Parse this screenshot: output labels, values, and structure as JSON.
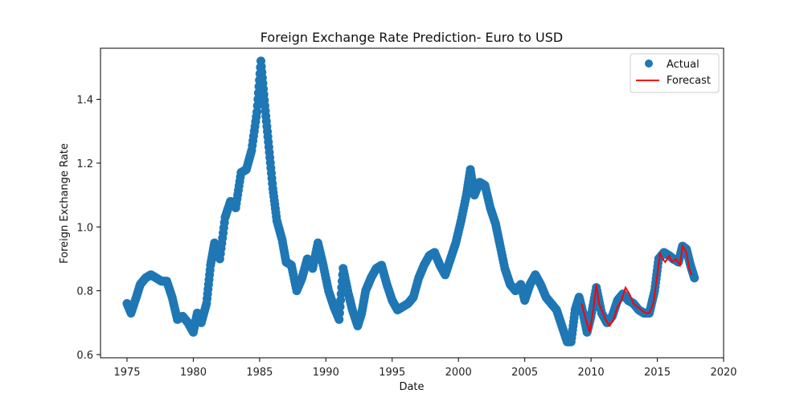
{
  "chart_data": {
    "type": "scatter",
    "title": "Foreign Exchange Rate Prediction- Euro to USD",
    "xlabel": "Date",
    "ylabel": "Foreign Exchange Rate",
    "xlim": [
      1973.0,
      2020.0
    ],
    "ylim": [
      0.59,
      1.56
    ],
    "x_ticks": [
      1975,
      1980,
      1985,
      1990,
      1995,
      2000,
      2005,
      2010,
      2015,
      2020
    ],
    "y_ticks": [
      0.6,
      0.8,
      1.0,
      1.2,
      1.4
    ],
    "x_tick_labels": [
      "1975",
      "1980",
      "1985",
      "1990",
      "1995",
      "2000",
      "2005",
      "2010",
      "2015",
      "2020"
    ],
    "y_tick_labels": [
      "0.6",
      "0.8",
      "1.0",
      "1.2",
      "1.4"
    ],
    "grid": false,
    "legend": {
      "position": "top-right",
      "entries": [
        "Actual",
        "Forecast"
      ]
    },
    "colors": {
      "actual": "#1f77b4",
      "forecast": "#ff0000"
    },
    "series": [
      {
        "name": "Actual",
        "kind": "scatter",
        "points": [
          [
            1975.0,
            0.76
          ],
          [
            1975.3,
            0.73
          ],
          [
            1975.7,
            0.78
          ],
          [
            1976.0,
            0.82
          ],
          [
            1976.4,
            0.84
          ],
          [
            1976.8,
            0.85
          ],
          [
            1977.2,
            0.84
          ],
          [
            1977.6,
            0.83
          ],
          [
            1978.0,
            0.83
          ],
          [
            1978.4,
            0.78
          ],
          [
            1978.8,
            0.71
          ],
          [
            1979.2,
            0.72
          ],
          [
            1979.6,
            0.7
          ],
          [
            1980.0,
            0.67
          ],
          [
            1980.3,
            0.73
          ],
          [
            1980.6,
            0.7
          ],
          [
            1981.0,
            0.76
          ],
          [
            1981.3,
            0.88
          ],
          [
            1981.6,
            0.95
          ],
          [
            1982.0,
            0.9
          ],
          [
            1982.4,
            1.03
          ],
          [
            1982.8,
            1.08
          ],
          [
            1983.2,
            1.06
          ],
          [
            1983.6,
            1.17
          ],
          [
            1984.0,
            1.18
          ],
          [
            1984.4,
            1.24
          ],
          [
            1984.8,
            1.36
          ],
          [
            1985.1,
            1.52
          ],
          [
            1985.4,
            1.38
          ],
          [
            1985.7,
            1.25
          ],
          [
            1986.0,
            1.12
          ],
          [
            1986.3,
            1.02
          ],
          [
            1986.7,
            0.96
          ],
          [
            1987.0,
            0.89
          ],
          [
            1987.4,
            0.88
          ],
          [
            1987.8,
            0.8
          ],
          [
            1988.2,
            0.84
          ],
          [
            1988.6,
            0.9
          ],
          [
            1989.0,
            0.87
          ],
          [
            1989.4,
            0.95
          ],
          [
            1989.8,
            0.88
          ],
          [
            1990.2,
            0.8
          ],
          [
            1990.6,
            0.75
          ],
          [
            1991.0,
            0.71
          ],
          [
            1991.3,
            0.87
          ],
          [
            1991.7,
            0.79
          ],
          [
            1992.0,
            0.74
          ],
          [
            1992.4,
            0.69
          ],
          [
            1992.7,
            0.73
          ],
          [
            1993.0,
            0.8
          ],
          [
            1993.4,
            0.84
          ],
          [
            1993.8,
            0.87
          ],
          [
            1994.2,
            0.88
          ],
          [
            1994.6,
            0.82
          ],
          [
            1995.0,
            0.77
          ],
          [
            1995.4,
            0.74
          ],
          [
            1995.8,
            0.75
          ],
          [
            1996.2,
            0.76
          ],
          [
            1996.6,
            0.78
          ],
          [
            1997.0,
            0.84
          ],
          [
            1997.4,
            0.88
          ],
          [
            1997.8,
            0.91
          ],
          [
            1998.2,
            0.92
          ],
          [
            1998.6,
            0.88
          ],
          [
            1999.0,
            0.85
          ],
          [
            1999.4,
            0.9
          ],
          [
            1999.8,
            0.95
          ],
          [
            2000.2,
            1.02
          ],
          [
            2000.6,
            1.1
          ],
          [
            2000.9,
            1.18
          ],
          [
            2001.2,
            1.1
          ],
          [
            2001.6,
            1.14
          ],
          [
            2002.0,
            1.13
          ],
          [
            2002.4,
            1.06
          ],
          [
            2002.8,
            1.01
          ],
          [
            2003.1,
            0.95
          ],
          [
            2003.5,
            0.87
          ],
          [
            2003.9,
            0.82
          ],
          [
            2004.3,
            0.8
          ],
          [
            2004.7,
            0.82
          ],
          [
            2005.0,
            0.77
          ],
          [
            2005.4,
            0.82
          ],
          [
            2005.8,
            0.85
          ],
          [
            2006.2,
            0.82
          ],
          [
            2006.6,
            0.78
          ],
          [
            2007.0,
            0.76
          ],
          [
            2007.4,
            0.74
          ],
          [
            2007.8,
            0.69
          ],
          [
            2008.2,
            0.64
          ],
          [
            2008.5,
            0.64
          ],
          [
            2008.8,
            0.74
          ],
          [
            2009.1,
            0.78
          ],
          [
            2009.4,
            0.73
          ],
          [
            2009.7,
            0.67
          ],
          [
            2010.0,
            0.72
          ],
          [
            2010.4,
            0.81
          ],
          [
            2010.8,
            0.73
          ],
          [
            2011.2,
            0.7
          ],
          [
            2011.6,
            0.72
          ],
          [
            2012.0,
            0.77
          ],
          [
            2012.4,
            0.79
          ],
          [
            2012.8,
            0.77
          ],
          [
            2013.2,
            0.76
          ],
          [
            2013.6,
            0.74
          ],
          [
            2014.0,
            0.73
          ],
          [
            2014.4,
            0.73
          ],
          [
            2014.8,
            0.8
          ],
          [
            2015.1,
            0.9
          ],
          [
            2015.5,
            0.92
          ],
          [
            2015.9,
            0.91
          ],
          [
            2016.2,
            0.9
          ],
          [
            2016.6,
            0.89
          ],
          [
            2016.9,
            0.94
          ],
          [
            2017.2,
            0.93
          ],
          [
            2017.5,
            0.88
          ],
          [
            2017.8,
            0.84
          ]
        ]
      },
      {
        "name": "Forecast",
        "kind": "line",
        "points": [
          [
            2009.3,
            0.76
          ],
          [
            2009.6,
            0.71
          ],
          [
            2009.9,
            0.67
          ],
          [
            2010.2,
            0.75
          ],
          [
            2010.4,
            0.82
          ],
          [
            2010.6,
            0.76
          ],
          [
            2010.9,
            0.73
          ],
          [
            2011.1,
            0.71
          ],
          [
            2011.4,
            0.69
          ],
          [
            2011.7,
            0.71
          ],
          [
            2012.0,
            0.75
          ],
          [
            2012.3,
            0.77
          ],
          [
            2012.6,
            0.81
          ],
          [
            2012.9,
            0.79
          ],
          [
            2013.2,
            0.76
          ],
          [
            2013.5,
            0.75
          ],
          [
            2013.8,
            0.74
          ],
          [
            2014.1,
            0.73
          ],
          [
            2014.4,
            0.73
          ],
          [
            2014.7,
            0.76
          ],
          [
            2015.0,
            0.85
          ],
          [
            2015.2,
            0.92
          ],
          [
            2015.4,
            0.9
          ],
          [
            2015.6,
            0.89
          ],
          [
            2015.9,
            0.91
          ],
          [
            2016.1,
            0.89
          ],
          [
            2016.4,
            0.9
          ],
          [
            2016.7,
            0.88
          ],
          [
            2016.9,
            0.94
          ],
          [
            2017.2,
            0.92
          ],
          [
            2017.4,
            0.87
          ],
          [
            2017.6,
            0.85
          ]
        ]
      }
    ]
  }
}
